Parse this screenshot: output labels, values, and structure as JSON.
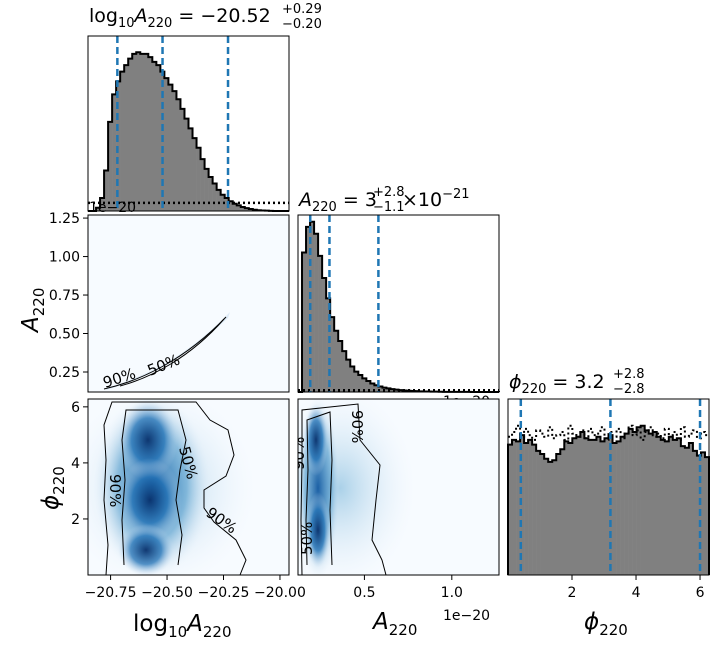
{
  "chart_data": {
    "type": "corner",
    "parameters": [
      {
        "name": "log10_A220",
        "axis_label_base": "log",
        "axis_label_sub": "10",
        "axis_label_var": "A",
        "axis_label_var_sub": "220"
      },
      {
        "name": "A220",
        "axis_label_var": "A",
        "axis_label_var_sub": "220",
        "offset_text": "1e−20"
      },
      {
        "name": "phi220",
        "axis_label_var": "ϕ",
        "axis_label_var_sub": "220"
      }
    ],
    "titles": [
      {
        "param": "log10_A220",
        "prefix": "log",
        "prefix_sub": "10",
        "var": "A",
        "var_sub": "220",
        "equals": " = ",
        "median": "−20.52",
        "upper": "+0.29",
        "lower": "−0.20",
        "suffix": ""
      },
      {
        "param": "A220",
        "prefix": "",
        "prefix_sub": "",
        "var": "A",
        "var_sub": "220",
        "equals": " = ",
        "median": "3",
        "upper": "+2.8",
        "lower": "−1.1",
        "suffix": "×10",
        "suffix_exp": "−21"
      },
      {
        "param": "phi220",
        "prefix": "",
        "prefix_sub": "",
        "var": "ϕ",
        "var_sub": "220",
        "equals": " = ",
        "median": "3.2",
        "upper": "+2.8",
        "lower": "−2.8",
        "suffix": ""
      }
    ],
    "ranges": {
      "log10_A220": [
        -20.85,
        -19.96
      ],
      "A220": [
        0.12,
        1.27
      ],
      "phi220": [
        0.0,
        6.28
      ]
    },
    "ticks": {
      "log10_A220": [
        "−20.75",
        "−20.50",
        "−20.25",
        "−20.00"
      ],
      "log10_A220_values": [
        -20.75,
        -20.5,
        -20.25,
        -20.0
      ],
      "A220_y": [
        "0.25",
        "0.50",
        "0.75",
        "1.00",
        "1.25"
      ],
      "A220_y_values": [
        0.25,
        0.5,
        0.75,
        1.0,
        1.25
      ],
      "A220_x": [
        "0.5",
        "1.0"
      ],
      "A220_x_values": [
        0.5,
        1.0
      ],
      "phi220": [
        "2",
        "4",
        "6"
      ],
      "phi220_values": [
        2,
        4,
        6
      ]
    },
    "quantiles": {
      "log10_A220": [
        -20.72,
        -20.52,
        -20.23
      ],
      "A220": [
        0.19,
        0.3,
        0.58
      ],
      "phi220": [
        0.4,
        3.2,
        6.0
      ]
    },
    "histograms": {
      "log10_A220": {
        "range": [
          -20.85,
          -19.96
        ],
        "posterior": [
          0,
          0,
          0.02,
          0.08,
          0.25,
          0.55,
          0.72,
          0.8,
          0.86,
          0.9,
          0.94,
          0.97,
          0.98,
          0.97,
          0.97,
          0.95,
          0.92,
          0.9,
          0.86,
          0.82,
          0.78,
          0.74,
          0.69,
          0.63,
          0.57,
          0.51,
          0.45,
          0.39,
          0.32,
          0.26,
          0.21,
          0.17,
          0.13,
          0.1,
          0.08,
          0.06,
          0.045,
          0.035,
          0.025,
          0.018,
          0.012,
          0.008,
          0.005,
          0.003,
          0.002,
          0.001,
          0,
          0,
          0,
          0
        ],
        "prior_level": 0.05
      },
      "A220": {
        "range": [
          0.12,
          1.27
        ],
        "posterior": [
          0,
          0.82,
          0.97,
          1.0,
          0.93,
          0.8,
          0.67,
          0.55,
          0.44,
          0.36,
          0.3,
          0.24,
          0.19,
          0.15,
          0.12,
          0.1,
          0.08,
          0.065,
          0.05,
          0.04,
          0.032,
          0.026,
          0.021,
          0.017,
          0.014,
          0.011,
          0.009,
          0.007,
          0.006,
          0.005,
          0.004,
          0.003,
          0.003,
          0.002,
          0.002,
          0.0015,
          0.001,
          0.001,
          0.001,
          0.0008,
          0.0006,
          0.0005,
          0.0004,
          0.0003,
          0.0002,
          0.0002,
          0.0001,
          0.0001,
          0.0001,
          0.0001
        ],
        "prior_level": 0.01
      },
      "phi220": {
        "range": [
          0.0,
          6.28
        ],
        "posterior": [
          0.83,
          0.86,
          0.85,
          0.89,
          0.84,
          0.86,
          0.83,
          0.79,
          0.77,
          0.74,
          0.72,
          0.73,
          0.77,
          0.8,
          0.85,
          0.84,
          0.87,
          0.88,
          0.91,
          0.87,
          0.86,
          0.86,
          0.88,
          0.85,
          0.87,
          0.89,
          0.84,
          0.85,
          0.88,
          0.9,
          0.93,
          0.91,
          0.94,
          0.95,
          0.92,
          0.9,
          0.91,
          0.88,
          0.86,
          0.85,
          0.88,
          0.86,
          0.87,
          0.82,
          0.81,
          0.84,
          0.79,
          0.76,
          0.78,
          0.75
        ],
        "prior": [
          0.88,
          0.91,
          0.95,
          0.87,
          0.93,
          0.89,
          0.86,
          0.92,
          0.9,
          0.88,
          0.94,
          0.87,
          0.89,
          0.91,
          0.86,
          0.95,
          0.9,
          0.88,
          0.92,
          0.87,
          0.93,
          0.89,
          0.9,
          0.94,
          0.86,
          0.91,
          0.88,
          0.93,
          0.87,
          0.9,
          0.95,
          0.89,
          0.92,
          0.86,
          0.91,
          0.94,
          0.88,
          0.9,
          0.87,
          0.93,
          0.89,
          0.91,
          0.86,
          0.94,
          0.88,
          0.9,
          0.92,
          0.87,
          0.91,
          0.89
        ]
      }
    },
    "contour_labels": [
      "90%",
      "50%"
    ],
    "colors": {
      "hist_fill": "#808080",
      "hist_edge": "#000000",
      "quantile_line": "#1f77b4",
      "density_light": "#f7fbff",
      "density_dark": "#08519c"
    }
  }
}
